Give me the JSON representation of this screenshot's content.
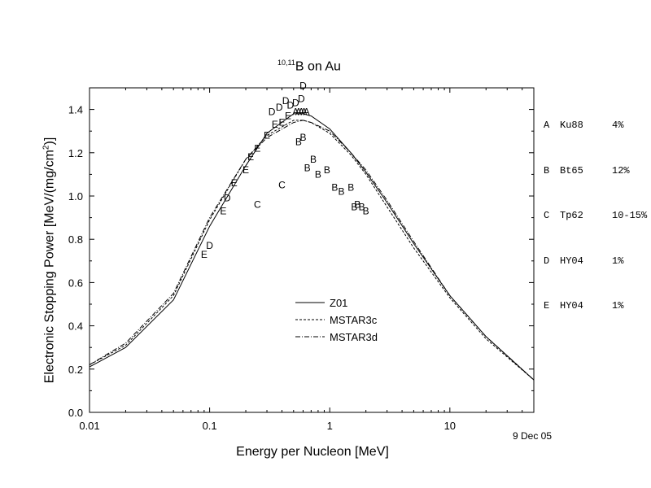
{
  "title": {
    "prefix": "10,11",
    "main": "B on Au"
  },
  "date": "9 Dec 05",
  "reference_legend": [
    {
      "key": "A",
      "ref": "Ku88",
      "unc": "4%"
    },
    {
      "key": "B",
      "ref": "Bt65",
      "unc": "12%"
    },
    {
      "key": "C",
      "ref": "Tp62",
      "unc": "10-15%"
    },
    {
      "key": "D",
      "ref": "HY04",
      "unc": "1%"
    },
    {
      "key": "E",
      "ref": "HY04",
      "unc": "1%"
    }
  ],
  "chart_data": {
    "type": "line",
    "title": "10,11B on Au",
    "xlabel": "Energy per Nucleon [MeV]",
    "ylabel": "Electronic Stopping Power [MeV/(mg/cm2)]",
    "x_scale": "log",
    "xlim": [
      0.01,
      50
    ],
    "ylim": [
      0.0,
      1.5
    ],
    "x_ticks": [
      "0.01",
      "0.1",
      "1",
      "10"
    ],
    "y_ticks": [
      "0.0",
      "0.2",
      "0.4",
      "0.6",
      "0.8",
      "1.0",
      "1.2",
      "1.4"
    ],
    "series": [
      {
        "name": "Z01",
        "style": "solid",
        "x": [
          0.01,
          0.02,
          0.05,
          0.1,
          0.2,
          0.3,
          0.5,
          0.6,
          0.7,
          1.0,
          1.5,
          2.0,
          3.0,
          5.0,
          10.0,
          20.0,
          50.0
        ],
        "y": [
          0.21,
          0.3,
          0.52,
          0.86,
          1.14,
          1.29,
          1.38,
          1.38,
          1.37,
          1.31,
          1.2,
          1.11,
          0.97,
          0.78,
          0.54,
          0.35,
          0.15
        ]
      },
      {
        "name": "MSTAR3c",
        "style": "dashed",
        "x": [
          0.01,
          0.02,
          0.05,
          0.1,
          0.2,
          0.3,
          0.5,
          0.6,
          0.7,
          1.0,
          1.5,
          2.0,
          3.0,
          5.0,
          10.0,
          20.0,
          50.0
        ],
        "y": [
          0.22,
          0.31,
          0.54,
          0.89,
          1.17,
          1.28,
          1.35,
          1.35,
          1.34,
          1.29,
          1.19,
          1.1,
          0.95,
          0.76,
          0.53,
          0.34,
          0.15
        ]
      },
      {
        "name": "MSTAR3d",
        "style": "dashdot",
        "x": [
          0.01,
          0.02,
          0.05,
          0.1,
          0.2,
          0.3,
          0.5,
          0.6,
          0.7,
          1.0,
          1.5,
          2.0,
          3.0,
          5.0,
          10.0,
          20.0,
          50.0
        ],
        "y": [
          0.22,
          0.32,
          0.55,
          0.9,
          1.17,
          1.27,
          1.34,
          1.35,
          1.34,
          1.3,
          1.2,
          1.12,
          0.98,
          0.79,
          0.54,
          0.35,
          0.15
        ]
      }
    ],
    "points": [
      {
        "series": "A",
        "x": [
          0.52,
          0.55,
          0.58,
          0.61,
          0.64
        ],
        "y": [
          1.39,
          1.39,
          1.39,
          1.39,
          1.39
        ]
      },
      {
        "series": "B",
        "x": [
          0.55,
          0.6,
          0.65,
          0.73,
          0.8,
          0.95,
          1.1,
          1.25,
          1.5,
          1.6,
          1.7,
          1.85,
          2.0
        ],
        "y": [
          1.25,
          1.27,
          1.13,
          1.17,
          1.1,
          1.12,
          1.04,
          1.02,
          1.04,
          0.95,
          0.96,
          0.95,
          0.93
        ]
      },
      {
        "series": "C",
        "x": [
          0.25,
          0.4
        ],
        "y": [
          0.96,
          1.05
        ]
      },
      {
        "series": "D",
        "x": [
          0.1,
          0.14,
          0.33,
          0.38,
          0.43,
          0.47,
          0.52,
          0.58,
          0.6
        ],
        "y": [
          0.77,
          0.99,
          1.39,
          1.41,
          1.44,
          1.42,
          1.43,
          1.45,
          1.51
        ]
      },
      {
        "series": "E",
        "x": [
          0.09,
          0.13,
          0.16,
          0.2,
          0.22,
          0.25,
          0.3,
          0.35,
          0.4,
          0.45
        ],
        "y": [
          0.73,
          0.93,
          1.06,
          1.12,
          1.18,
          1.22,
          1.28,
          1.33,
          1.34,
          1.37
        ]
      }
    ],
    "legend_position": "center"
  }
}
